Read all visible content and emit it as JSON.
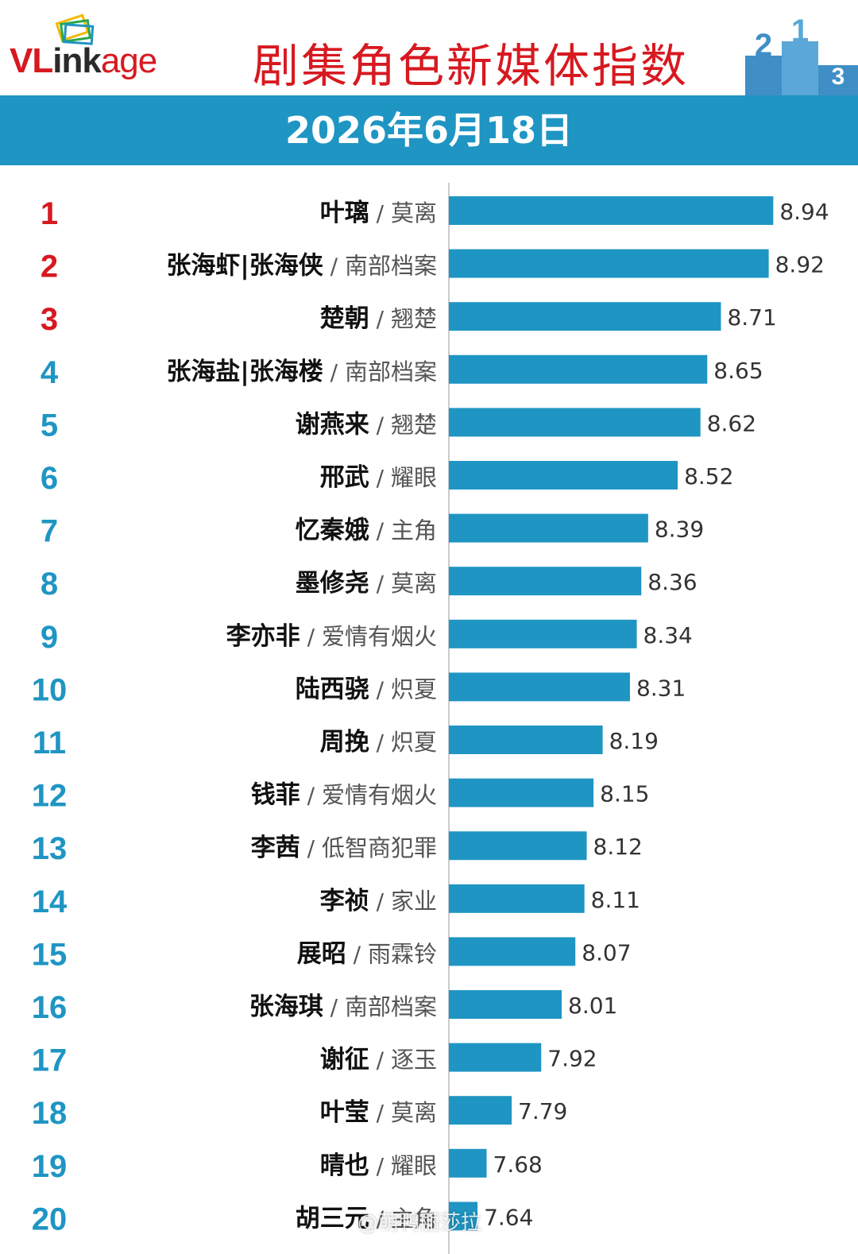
{
  "header": {
    "logo": "VLinkage",
    "title": "剧集角色新媒体指数",
    "date": "2026年6月18日"
  },
  "watermark": "@萌鸭丽莎拉",
  "colors": {
    "brand_red": "#d71920",
    "bar": "#1f95c3",
    "rank_top": "#d71920",
    "rank_other": "#1f95c3"
  },
  "chart_data": {
    "type": "bar",
    "orientation": "horizontal",
    "title": "剧集角色新媒体指数",
    "subtitle": "2026年6月18日",
    "xlabel": "",
    "ylabel": "",
    "xlim": [
      7.5,
      9.0
    ],
    "grid": false,
    "rows": [
      {
        "rank": "1",
        "name": "叶璃",
        "drama": "莫离",
        "value": 8.94
      },
      {
        "rank": "2",
        "name": "张海虾|张海侠",
        "drama": "南部档案",
        "value": 8.92
      },
      {
        "rank": "3",
        "name": "楚朝",
        "drama": "翘楚",
        "value": 8.71
      },
      {
        "rank": "4",
        "name": "张海盐|张海楼",
        "drama": "南部档案",
        "value": 8.65
      },
      {
        "rank": "5",
        "name": "谢燕来",
        "drama": "翘楚",
        "value": 8.62
      },
      {
        "rank": "6",
        "name": "邢武",
        "drama": "耀眼",
        "value": 8.52
      },
      {
        "rank": "7",
        "name": "忆秦娥",
        "drama": "主角",
        "value": 8.39
      },
      {
        "rank": "8",
        "name": "墨修尧",
        "drama": "莫离",
        "value": 8.36
      },
      {
        "rank": "9",
        "name": "李亦非",
        "drama": "爱情有烟火",
        "value": 8.34
      },
      {
        "rank": "10",
        "name": "陆西骁",
        "drama": "炽夏",
        "value": 8.31
      },
      {
        "rank": "11",
        "name": "周挽",
        "drama": "炽夏",
        "value": 8.19
      },
      {
        "rank": "12",
        "name": "钱菲",
        "drama": "爱情有烟火",
        "value": 8.15
      },
      {
        "rank": "13",
        "name": "李茜",
        "drama": "低智商犯罪",
        "value": 8.12
      },
      {
        "rank": "14",
        "name": "李祯",
        "drama": "家业",
        "value": 8.11
      },
      {
        "rank": "15",
        "name": "展昭",
        "drama": "雨霖铃",
        "value": 8.07
      },
      {
        "rank": "16",
        "name": "张海琪",
        "drama": "南部档案",
        "value": 8.01
      },
      {
        "rank": "17",
        "name": "谢征",
        "drama": "逐玉",
        "value": 7.92
      },
      {
        "rank": "18",
        "name": "叶莹",
        "drama": "莫离",
        "value": 7.79
      },
      {
        "rank": "19",
        "name": "晴也",
        "drama": "耀眼",
        "value": 7.68
      },
      {
        "rank": "20",
        "name": "胡三元",
        "drama": "主角",
        "value": 7.64
      }
    ]
  }
}
